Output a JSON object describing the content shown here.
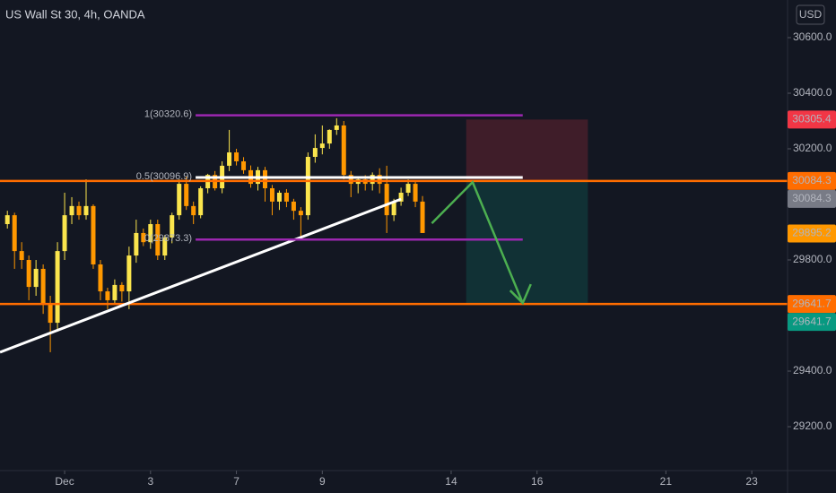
{
  "chart_data": {
    "type": "candlestick",
    "title": "US Wall St 30, 4h, OANDA",
    "currency": "USD",
    "x": [
      0,
      1,
      2,
      3,
      4,
      5,
      6,
      7,
      8,
      9,
      10,
      11,
      12,
      13,
      14,
      15,
      16,
      17,
      18,
      19,
      20,
      21,
      22,
      23,
      24,
      25,
      26,
      27,
      28,
      29,
      30,
      31,
      32,
      33,
      34,
      35,
      36,
      37,
      38,
      39,
      40,
      41,
      42,
      43,
      44,
      45,
      46,
      47,
      48,
      49,
      50,
      51,
      52,
      53,
      54,
      55,
      56,
      57,
      58
    ],
    "open": [
      29929,
      29961,
      29832,
      29800,
      29703,
      29768,
      29639,
      29574,
      29832,
      29961,
      29994,
      29961,
      29994,
      29784,
      29687,
      29655,
      29710,
      29687,
      29816,
      29897,
      29864,
      29929,
      29816,
      29881,
      29961,
      30074,
      29994,
      29961,
      30058,
      30106,
      30058,
      30139,
      30187,
      30155,
      30123,
      30074,
      30123,
      30058,
      30010,
      30042,
      30010,
      29977,
      29961,
      30171,
      30203,
      30219,
      30268,
      30284,
      30106,
      30074,
      30090,
      30074,
      30106,
      30074,
      29961,
      30010,
      30042,
      30074,
      30010
    ],
    "high": [
      29977,
      29970,
      29864,
      29816,
      29800,
      29784,
      29671,
      29864,
      30042,
      30026,
      30010,
      30090,
      30000,
      29800,
      29700,
      29730,
      29720,
      29848,
      29945,
      29913,
      29945,
      29945,
      29890,
      29970,
      30090,
      30100,
      30010,
      30065,
      30110,
      30120,
      30155,
      30268,
      30200,
      30170,
      30140,
      30135,
      30135,
      30070,
      30050,
      30055,
      30020,
      29990,
      30187,
      30252,
      30284,
      30270,
      30310,
      30300,
      30120,
      30100,
      30105,
      30115,
      30130,
      30139,
      30020,
      30060,
      30090,
      30085,
      30030
    ],
    "low": [
      29913,
      29768,
      29768,
      29655,
      29671,
      29606,
      29468,
      29542,
      29800,
      29929,
      29945,
      29945,
      29768,
      29655,
      29623,
      29639,
      29650,
      29623,
      29790,
      29850,
      29840,
      29800,
      29800,
      29860,
      29945,
      29980,
      29929,
      29950,
      30040,
      30050,
      30040,
      30120,
      30140,
      30110,
      30060,
      30050,
      30010,
      29961,
      29980,
      29990,
      29945,
      29881,
      29945,
      30150,
      30180,
      30200,
      30250,
      30090,
      30026,
      30040,
      30050,
      30050,
      30040,
      29897,
      29940,
      29995,
      30030,
      29990,
      29897
    ],
    "close": [
      29961,
      29832,
      29800,
      29703,
      29768,
      29639,
      29574,
      29832,
      29961,
      29994,
      29961,
      29994,
      29784,
      29687,
      29655,
      29710,
      29687,
      29816,
      29897,
      29864,
      29929,
      29816,
      29881,
      29961,
      30074,
      29994,
      29961,
      30058,
      30106,
      30058,
      30139,
      30187,
      30155,
      30123,
      30074,
      30123,
      30058,
      30010,
      30042,
      30010,
      29977,
      29961,
      30171,
      30203,
      30219,
      30268,
      30284,
      30106,
      30074,
      30090,
      30074,
      30106,
      30074,
      29961,
      30010,
      30042,
      30074,
      30010,
      29897
    ],
    "up_color": "#fbe54d",
    "down_color": "#ff9800",
    "xlim": [
      -1.03,
      109
    ],
    "ylim": [
      29042,
      30735.5
    ],
    "xticks": [
      {
        "value": 8,
        "label": "Dec"
      },
      {
        "value": 20,
        "label": "3"
      },
      {
        "value": 32,
        "label": "7"
      },
      {
        "value": 44,
        "label": "9"
      },
      {
        "value": 62,
        "label": "14"
      },
      {
        "value": 74,
        "label": "16"
      },
      {
        "value": 92,
        "label": "21"
      },
      {
        "value": 104,
        "label": "23"
      }
    ],
    "yticks": [
      {
        "value": 30600,
        "label": "30600.0"
      },
      {
        "value": 30400,
        "label": "30400.0"
      },
      {
        "value": 30200,
        "label": "30200.0"
      },
      {
        "value": 29800,
        "label": "29800.0"
      },
      {
        "value": 29400,
        "label": "29400.0"
      },
      {
        "value": 29200,
        "label": "29200.0"
      }
    ],
    "levels": [
      {
        "value": 30084.3,
        "color": "#ff6d00"
      },
      {
        "value": 29641.7,
        "color": "#ff6d00"
      }
    ],
    "fib": {
      "x": [
        26.3,
        72
      ],
      "levels": [
        {
          "value": 30320.6,
          "label": "1(30320.6)",
          "color": "#9c27b0"
        },
        {
          "value": 30096.9,
          "label": "0.5(30096.9)",
          "color": "#ffffff"
        },
        {
          "value": 29873.3,
          "label": "0(29873.3)",
          "color": "#9c27b0"
        }
      ]
    },
    "trendline": {
      "x": [
        -1.03,
        55
      ],
      "y": [
        29468,
        30019
      ],
      "color": "#ffffff"
    },
    "arrow": {
      "x": [
        59.3,
        65,
        72
      ],
      "y": [
        29932,
        30080,
        29645
      ],
      "color": "#4caf50"
    },
    "position": {
      "x": [
        64.1,
        81.1
      ],
      "stop": 30305.4,
      "entry": 30084.3,
      "target": 29641.7
    },
    "price_labels": [
      {
        "value": 30305.4,
        "color": "#f23645",
        "text_color": "#ffffff"
      },
      {
        "value": 30084.3,
        "color": "#ff6d00",
        "text_color": "#ffffff"
      },
      {
        "value": 30084.3,
        "color": "#787b86",
        "text_color": "#ffffff"
      },
      {
        "value": 29895.2,
        "color": "#ff9800",
        "text_color": "#131722"
      },
      {
        "value": 29641.7,
        "color": "#ff6d00",
        "text_color": "#ffffff"
      },
      {
        "value": 29641.7,
        "color": "#089981",
        "text_color": "#ffffff"
      }
    ]
  }
}
